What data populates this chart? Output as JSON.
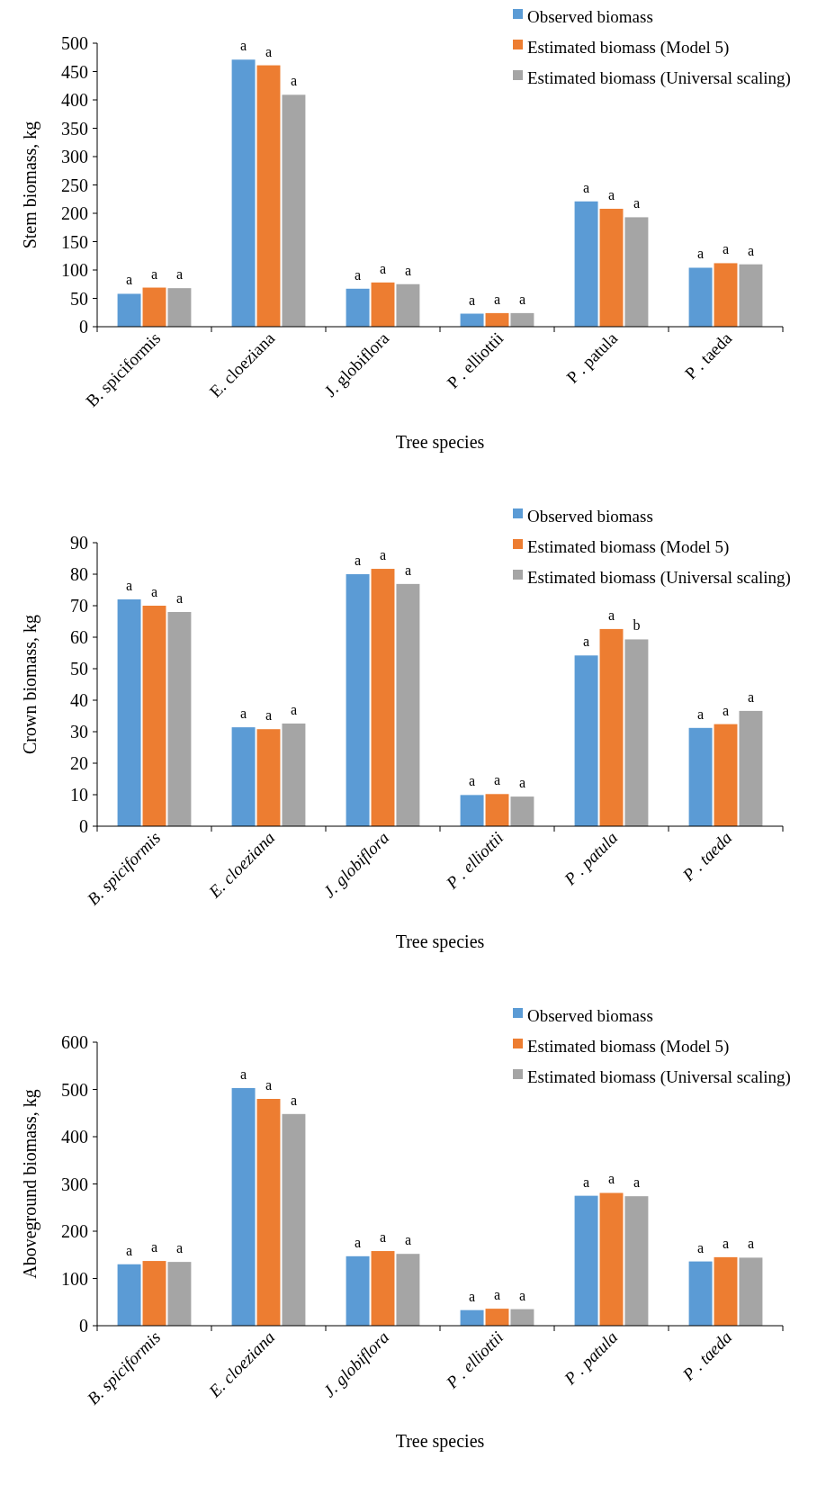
{
  "chart_data": [
    {
      "type": "bar",
      "xlabel": "Tree species",
      "ylabel": "Stem biomass, kg",
      "categories": [
        "B. spiciformis",
        "E. cloeziana",
        "J. globiflora",
        "P . elliottii",
        "P . patula",
        "P . taeda"
      ],
      "ylim": [
        0,
        500
      ],
      "yticks": [
        0,
        50,
        100,
        150,
        200,
        250,
        300,
        350,
        400,
        450,
        500
      ],
      "grid": false,
      "legend": "top right",
      "series": [
        {
          "name": "Observed biomass",
          "color": "#5b9bd5",
          "values": [
            58,
            471,
            67,
            23,
            221,
            104
          ],
          "value_labels": [
            "a",
            "a",
            "a",
            "a",
            "a",
            "a"
          ]
        },
        {
          "name": "Estimated biomass (Model 5)",
          "color": "#ed7d31",
          "values": [
            69,
            461,
            78,
            24,
            208,
            112
          ],
          "value_labels": [
            "a",
            "a",
            "a",
            "a",
            "a",
            "a"
          ]
        },
        {
          "name": "Estimated biomass (Universal scaling)",
          "color": "#a5a5a5",
          "values": [
            68,
            409,
            75,
            24,
            193,
            110
          ],
          "value_labels": [
            "a",
            "a",
            "a",
            "a",
            "a",
            "a"
          ]
        }
      ]
    },
    {
      "type": "bar",
      "xlabel": "Tree species",
      "ylabel": "Crown biomass, kg",
      "categories": [
        "B. spiciformis",
        "E. cloeziana",
        "J. globiflora",
        "P . elliottii",
        "P . patula",
        "P . taeda"
      ],
      "ylim": [
        0,
        90
      ],
      "yticks": [
        0,
        10,
        20,
        30,
        40,
        50,
        60,
        70,
        80,
        90
      ],
      "grid": false,
      "legend": "top right",
      "series": [
        {
          "name": "Observed biomass",
          "color": "#5b9bd5",
          "values": [
            72,
            31.4,
            80,
            9.9,
            54.2,
            31.2
          ],
          "value_labels": [
            "a",
            "a",
            "a",
            "a",
            "a",
            "a"
          ]
        },
        {
          "name": "Estimated biomass (Model 5)",
          "color": "#ed7d31",
          "values": [
            70,
            30.8,
            81.7,
            10.2,
            62.6,
            32.4
          ],
          "value_labels": [
            "a",
            "a",
            "a",
            "a",
            "a",
            "a"
          ]
        },
        {
          "name": "Estimated biomass (Universal scaling)",
          "color": "#a5a5a5",
          "values": [
            68,
            32.6,
            76.9,
            9.4,
            59.3,
            36.6
          ],
          "value_labels": [
            "a",
            "a",
            "a",
            "a",
            "b",
            "a"
          ]
        }
      ]
    },
    {
      "type": "bar",
      "xlabel": "Tree species",
      "ylabel": "Aboveground biomass, kg",
      "categories": [
        "B. spiciformis",
        "E. cloeziana",
        "J. globiflora",
        "P . elliottii",
        "P . patula",
        "P . taeda"
      ],
      "ylim": [
        0,
        600
      ],
      "yticks": [
        0,
        100,
        200,
        300,
        400,
        500,
        600
      ],
      "grid": false,
      "legend": "top right",
      "series": [
        {
          "name": "Observed biomass",
          "color": "#5b9bd5",
          "values": [
            130,
            503,
            147,
            33,
            275,
            136
          ],
          "value_labels": [
            "a",
            "a",
            "a",
            "a",
            "a",
            "a"
          ]
        },
        {
          "name": "Estimated biomass (Model 5)",
          "color": "#ed7d31",
          "values": [
            137,
            480,
            158,
            36,
            281,
            145
          ],
          "value_labels": [
            "a",
            "a",
            "a",
            "a",
            "a",
            "a"
          ]
        },
        {
          "name": "Estimated biomass (Universal scaling)",
          "color": "#a5a5a5",
          "values": [
            135,
            448,
            152,
            35,
            274,
            144
          ],
          "value_labels": [
            "a",
            "a",
            "a",
            "a",
            "a",
            "a"
          ]
        }
      ]
    }
  ]
}
